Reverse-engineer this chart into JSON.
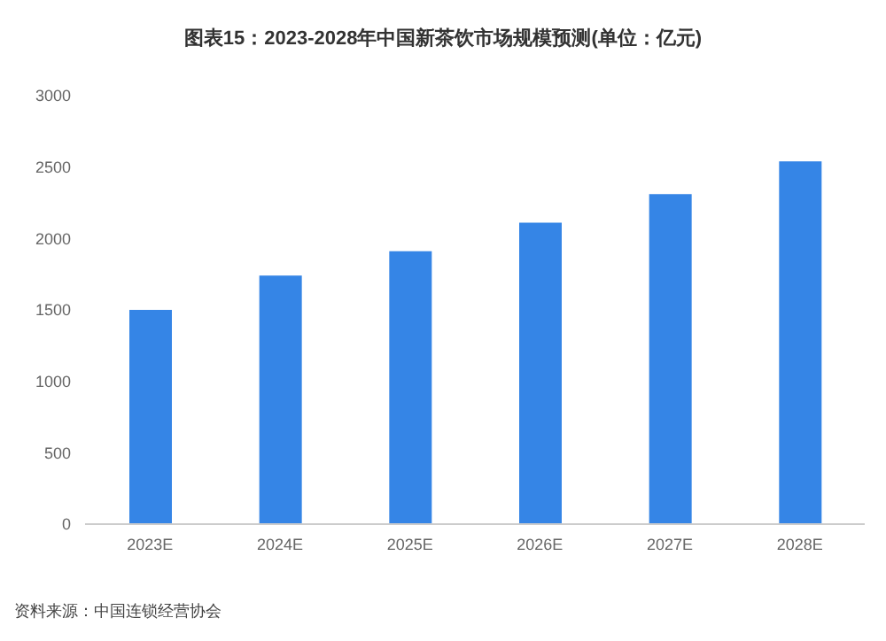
{
  "chart_data": {
    "type": "bar",
    "title": "图表15：2023-2028年中国新茶饮市场规模预测(单位：亿元)",
    "categories": [
      "2023E",
      "2024E",
      "2025E",
      "2026E",
      "2027E",
      "2028E"
    ],
    "values": [
      1500,
      1740,
      1910,
      2110,
      2310,
      2540
    ],
    "color": "#3585e6",
    "ylim": [
      0,
      3000
    ],
    "yticks": [
      0,
      500,
      1000,
      1500,
      2000,
      2500,
      3000
    ],
    "grid": false,
    "annotations": [
      "资料来源：中国连锁经营协会"
    ]
  }
}
